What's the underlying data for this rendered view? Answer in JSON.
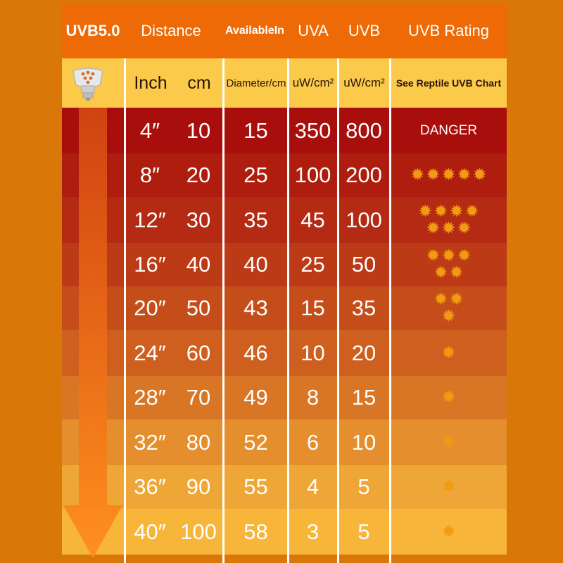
{
  "header": {
    "model": "UVB5.0",
    "distance": "Distance",
    "available": "AvailableIn",
    "uva": "UVA",
    "uvb": "UVB",
    "rating": "UVB Rating"
  },
  "subheader": {
    "inch": "Inch",
    "cm": "cm",
    "diameter": "Diameter/cm",
    "uva_unit": "uW/cm²",
    "uvb_unit": "uW/cm²",
    "rating_note": "See Reptile UVB Chart"
  },
  "colors": {
    "header": "#ee6a06",
    "subheader": "#fbca4b",
    "background": "#d97708",
    "star": "#f39a14"
  },
  "icons": {
    "bulb": "uv-bulb-icon",
    "arrow": "down-arrow-icon",
    "star": "sun-star-icon"
  },
  "rows": [
    {
      "inch": "4″",
      "cm": "10",
      "diameter": "15",
      "uva": "350",
      "uvb": "800",
      "rating_text": "DANGER",
      "stars": 0,
      "bg": "#a80f0c"
    },
    {
      "inch": "8″",
      "cm": "20",
      "diameter": "25",
      "uva": "100",
      "uvb": "200",
      "rating_text": "",
      "stars": 5,
      "bg": "#ae1d0e"
    },
    {
      "inch": "12″",
      "cm": "30",
      "diameter": "35",
      "uva": "45",
      "uvb": "100",
      "rating_text": "",
      "stars": 7,
      "bg": "#b42a12"
    },
    {
      "inch": "16″",
      "cm": "40",
      "diameter": "40",
      "uva": "25",
      "uvb": "50",
      "rating_text": "",
      "stars": 5,
      "bg": "#bc3a16"
    },
    {
      "inch": "20″",
      "cm": "50",
      "diameter": "43",
      "uva": "15",
      "uvb": "35",
      "rating_text": "",
      "stars": 3,
      "bg": "#c54d1a"
    },
    {
      "inch": "24″",
      "cm": "60",
      "diameter": "46",
      "uva": "10",
      "uvb": "20",
      "rating_text": "",
      "stars": 1,
      "bg": "#cf5f1e"
    },
    {
      "inch": "28″",
      "cm": "70",
      "diameter": "49",
      "uva": "8",
      "uvb": "15",
      "rating_text": "",
      "stars": 1,
      "bg": "#d97626"
    },
    {
      "inch": "32″",
      "cm": "80",
      "diameter": "52",
      "uva": "6",
      "uvb": "10",
      "rating_text": "",
      "stars": 1,
      "bg": "#e48e2e"
    },
    {
      "inch": "36″",
      "cm": "90",
      "diameter": "55",
      "uva": "4",
      "uvb": "5",
      "rating_text": "",
      "stars": 1,
      "bg": "#eea636"
    },
    {
      "inch": "40″",
      "cm": "100",
      "diameter": "58",
      "uva": "3",
      "uvb": "5",
      "rating_text": "",
      "stars": 1,
      "bg": "#f7b63a"
    }
  ]
}
